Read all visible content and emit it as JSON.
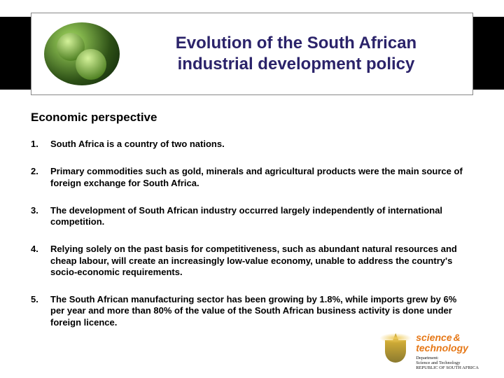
{
  "header": {
    "title_line1": "Evolution of the South African",
    "title_line2": "industrial development policy"
  },
  "subtitle": "Economic perspective",
  "items": [
    {
      "n": "1.",
      "text": "South Africa is a country of two nations."
    },
    {
      "n": "2.",
      "text": "Primary commodities such as gold, minerals and agricultural products were the main source of foreign exchange for South Africa."
    },
    {
      "n": "3.",
      "text": "The development of South African industry occurred largely independently of international competition."
    },
    {
      "n": "4.",
      "text": "Relying solely on the past basis for competitiveness, such as abundant natural resources and cheap labour, will create an increasingly low-value economy, unable to address the country's socio-economic requirements."
    },
    {
      "n": "5.",
      "text": "The South African manufacturing sector has been growing by 1.8%, while imports grew by 6% per year and more than 80% of the value of the South African business activity is done under foreign licence."
    }
  ],
  "govlogo": {
    "brand1": "science",
    "amp": "&",
    "brand2": "technology",
    "dept1": "Department:",
    "dept2": "Science and Technology",
    "dept3": "REPUBLIC OF SOUTH AFRICA"
  }
}
